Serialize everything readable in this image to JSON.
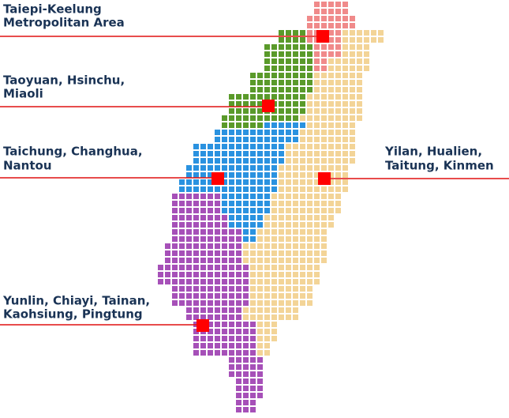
{
  "regions": [
    {
      "lines": [
        "Taiepi-Keelung",
        "Metropolitan Area"
      ]
    },
    {
      "lines": [
        "Taoyuan, Hsinchu,",
        "Miaoli"
      ]
    },
    {
      "lines": [
        "Taichung, Changhua,",
        "Nantou"
      ]
    },
    {
      "lines": [
        "Yilan, Hualien,",
        "Taitung, Kinmen"
      ]
    },
    {
      "lines": [
        "Yunlin, Chiayi, Tainan,",
        "Kaohsiung, Pingtung"
      ]
    }
  ]
}
